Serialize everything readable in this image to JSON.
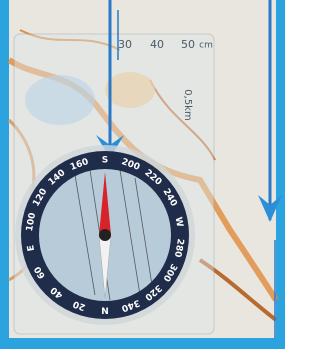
{
  "image": {
    "ruler_labels": [
      "30",
      "40",
      "50",
      "cm"
    ],
    "scale_label": "0,5km",
    "dial_labels": [
      "S",
      "200",
      "220",
      "240",
      "W",
      "280",
      "300",
      "320",
      "340",
      "N",
      "20",
      "40",
      "60",
      "E",
      "100",
      "120",
      "140",
      "160"
    ]
  }
}
